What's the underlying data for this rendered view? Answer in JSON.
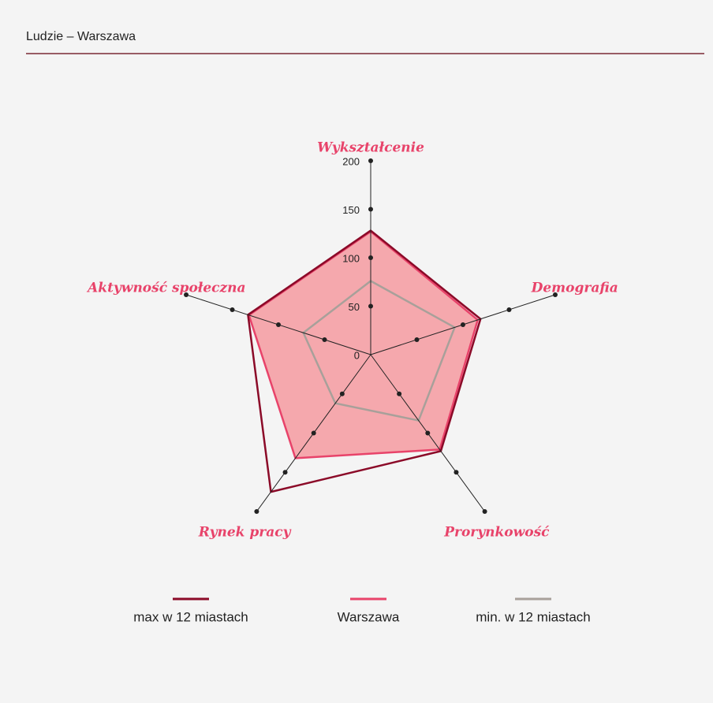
{
  "header": {
    "title": "Ludzie – Warszawa"
  },
  "chart_data": {
    "type": "radar",
    "categories": [
      "Wykształcenie",
      "Demografia",
      "Prorynkowość",
      "Rynek pracy",
      "Aktywność społeczna"
    ],
    "series": [
      {
        "name": "max w 12 miastach",
        "color": "#8b0a28",
        "values": [
          128,
          119,
          123,
          175,
          133
        ]
      },
      {
        "name": "Warszawa",
        "color": "#e8436a",
        "values": [
          127,
          116,
          121,
          132,
          132
        ]
      },
      {
        "name": "min. w 12 miastach",
        "color": "#a8a09a",
        "values": [
          76,
          91,
          84,
          62,
          73
        ]
      }
    ],
    "ylim": [
      0,
      200
    ],
    "yticks": [
      0,
      50,
      100,
      150,
      200
    ]
  }
}
